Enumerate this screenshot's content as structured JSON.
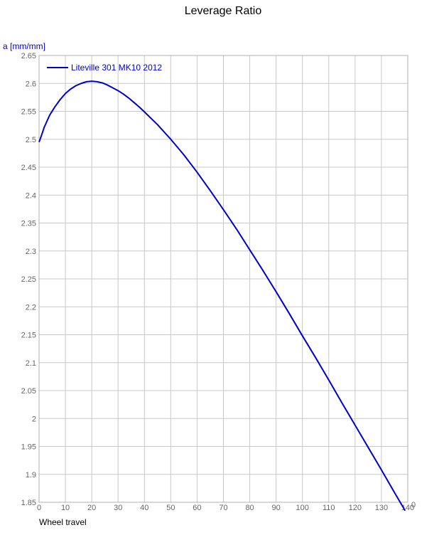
{
  "chart_data": {
    "type": "line",
    "title": "Leverage Ratio",
    "ylabel": "a [mm/mm]",
    "xlabel": "Wheel travel",
    "xlim": [
      0,
      140
    ],
    "ylim": [
      1.85,
      2.65
    ],
    "xticks": [
      0,
      10,
      20,
      30,
      40,
      50,
      60,
      70,
      80,
      90,
      100,
      110,
      120,
      130,
      140
    ],
    "yticks": [
      1.85,
      1.9,
      1.95,
      2,
      2.05,
      2.1,
      2.15,
      2.2,
      2.25,
      2.3,
      2.35,
      2.4,
      2.45,
      2.5,
      2.55,
      2.6,
      2.65
    ],
    "xtick_labels": [
      "0",
      "10",
      "20",
      "30",
      "40",
      "50",
      "60",
      "70",
      "80",
      "90",
      "100",
      "110",
      "120",
      "130",
      "140"
    ],
    "ytick_labels": [
      "1.85",
      "1.9",
      "1.95",
      "2",
      "2.05",
      "2.1",
      "2.15",
      "2.2",
      "2.25",
      "2.3",
      "2.35",
      "2.4",
      "2.45",
      "2.5",
      "2.55",
      "2.6",
      "2.65"
    ],
    "x_end_extra_label": "0",
    "grid": true,
    "legend_position": "top-left",
    "series": [
      {
        "name": "Liteville 301 MK10 2012",
        "color": "#0000cc",
        "x": [
          0,
          1,
          2,
          4,
          6,
          8,
          10,
          12,
          14,
          16,
          18,
          20,
          22,
          24,
          26,
          28,
          30,
          32,
          34,
          36,
          38,
          40,
          45,
          50,
          55,
          60,
          65,
          70,
          75,
          80,
          85,
          90,
          95,
          100,
          105,
          110,
          115,
          120,
          125,
          130,
          135,
          139
        ],
        "values": [
          2.495,
          2.508,
          2.522,
          2.543,
          2.558,
          2.571,
          2.582,
          2.59,
          2.596,
          2.6,
          2.603,
          2.604,
          2.603,
          2.601,
          2.597,
          2.592,
          2.587,
          2.581,
          2.574,
          2.566,
          2.558,
          2.549,
          2.526,
          2.5,
          2.472,
          2.441,
          2.408,
          2.374,
          2.339,
          2.302,
          2.265,
          2.227,
          2.188,
          2.148,
          2.109,
          2.069,
          2.028,
          1.988,
          1.948,
          1.908,
          1.867,
          1.835
        ]
      }
    ]
  }
}
